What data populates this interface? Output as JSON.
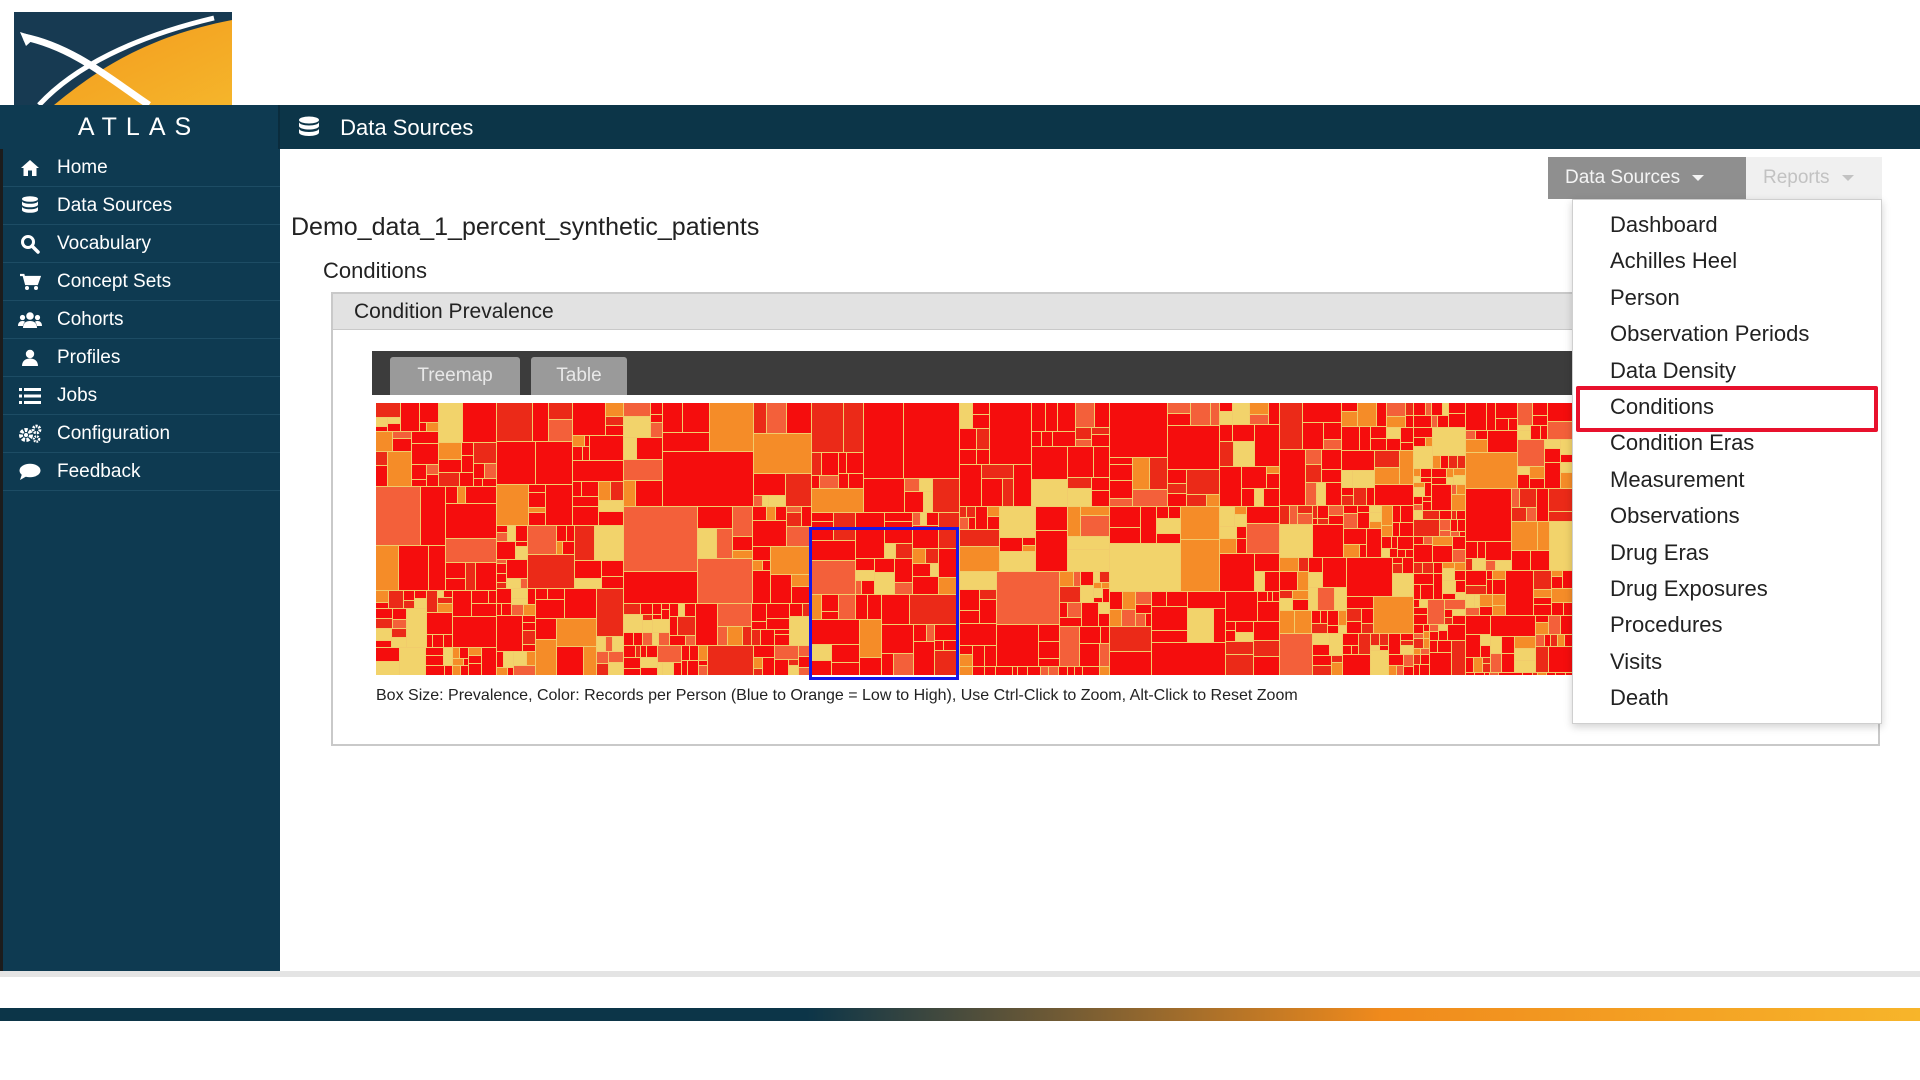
{
  "app": {
    "brand": "ATLAS",
    "header_title": "Data Sources"
  },
  "sidebar": {
    "items": [
      {
        "label": "Home",
        "icon": "home-icon"
      },
      {
        "label": "Data Sources",
        "icon": "database-icon"
      },
      {
        "label": "Vocabulary",
        "icon": "search-icon"
      },
      {
        "label": "Concept Sets",
        "icon": "cart-icon"
      },
      {
        "label": "Cohorts",
        "icon": "users-icon"
      },
      {
        "label": "Profiles",
        "icon": "user-icon"
      },
      {
        "label": "Jobs",
        "icon": "list-icon"
      },
      {
        "label": "Configuration",
        "icon": "gears-icon"
      },
      {
        "label": "Feedback",
        "icon": "comment-icon"
      }
    ]
  },
  "main": {
    "datasource_name": "Demo_data_1_percent_synthetic_patients",
    "section": "Conditions",
    "panel_title": "Condition Prevalence",
    "tabs": [
      {
        "label": "Treemap"
      },
      {
        "label": "Table"
      }
    ],
    "caption": "Box Size: Prevalence, Color: Records per Person (Blue to Orange = Low to High), Use Ctrl-Click to Zoom, Alt-Click to Reset Zoom"
  },
  "toolbar": {
    "datasources_label": "Data Sources",
    "reports_label": "Reports"
  },
  "dropdown": {
    "items": [
      "Dashboard",
      "Achilles Heel",
      "Person",
      "Observation Periods",
      "Data Density",
      "Conditions",
      "Condition Eras",
      "Measurement",
      "Observations",
      "Drug Eras",
      "Drug Exposures",
      "Procedures",
      "Visits",
      "Death"
    ],
    "highlighted": "Conditions"
  },
  "colors": {
    "navy": "#0c3548",
    "treemap_red": "#f50d0d",
    "treemap_orange": "#f58c28",
    "treemap_yellow": "#f2d36b",
    "highlight_blue": "#1717e6",
    "highlight_red": "#e8112d"
  }
}
